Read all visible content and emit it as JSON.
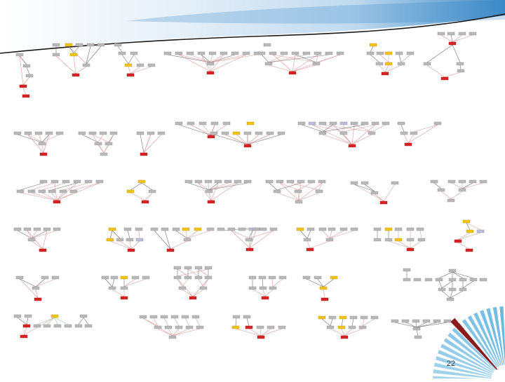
{
  "slide": {
    "page_number": "22"
  },
  "node_colors": {
    "default": "#b9b9b9",
    "default_border": "#8a8a8a",
    "sink": "#d92323",
    "sink_border": "#9e1111",
    "highlight": "#f0c419",
    "highlight_border": "#b8920c",
    "alt": "#b9bde0",
    "edge_red": "#d88a8a",
    "edge_dark": "#555555",
    "edge_green": "#8fbf8f",
    "edge_blue": "#8c8cc8"
  },
  "theme_colors": {
    "header_light": "#e3eef8",
    "header_mid": "#b8d6ee",
    "header_blue": "#2c7fc3",
    "rule_dark": "#1a1a1a",
    "burst_blue": "#5ab0de",
    "burst_red": "#8c1c1c"
  }
}
